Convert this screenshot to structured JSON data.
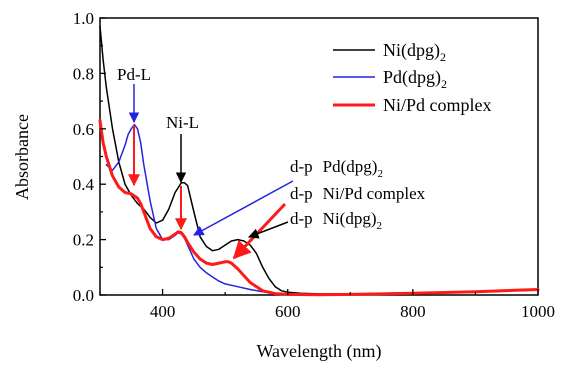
{
  "chart_data": {
    "type": "line",
    "xlabel": "Wavelength (nm)",
    "ylabel": "Absorbance",
    "xlim": [
      300,
      1000
    ],
    "ylim": [
      0.0,
      1.0
    ],
    "x_ticks": [
      400,
      600,
      800,
      1000
    ],
    "x_tick_labels": [
      "400",
      "600",
      "800",
      "1000"
    ],
    "y_ticks": [
      0.0,
      0.2,
      0.4,
      0.6,
      0.8,
      1.0
    ],
    "y_tick_labels": [
      "0.0",
      "0.2",
      "0.4",
      "0.6",
      "0.8",
      "1.0"
    ],
    "grid": false,
    "legend_position": "top-right",
    "series": [
      {
        "name": "Ni(dpg)",
        "name_sub": "2",
        "color": "#000000",
        "x": [
          300,
          305,
          310,
          320,
          330,
          340,
          350,
          360,
          370,
          380,
          390,
          400,
          410,
          420,
          430,
          435,
          440,
          450,
          460,
          470,
          480,
          490,
          500,
          510,
          520,
          530,
          540,
          550,
          560,
          570,
          580,
          590,
          600,
          620,
          650,
          700,
          800,
          900,
          1000
        ],
        "y": [
          0.97,
          0.85,
          0.75,
          0.6,
          0.48,
          0.4,
          0.36,
          0.33,
          0.31,
          0.28,
          0.26,
          0.27,
          0.31,
          0.37,
          0.405,
          0.405,
          0.395,
          0.3,
          0.21,
          0.175,
          0.16,
          0.165,
          0.18,
          0.195,
          0.2,
          0.195,
          0.18,
          0.15,
          0.1,
          0.06,
          0.03,
          0.015,
          0.01,
          0.006,
          0.004,
          0.004,
          0.006,
          0.01,
          0.018
        ]
      },
      {
        "name": "Pd(dpg)",
        "name_sub": "2",
        "color": "#2424e0",
        "x": [
          310,
          320,
          330,
          340,
          345,
          350,
          355,
          360,
          365,
          370,
          380,
          390,
          400,
          410,
          420,
          425,
          430,
          435,
          440,
          450,
          460,
          470,
          480,
          490,
          500,
          520,
          540,
          560,
          580,
          600,
          650,
          700,
          800,
          900,
          1000
        ],
        "y": [
          0.47,
          0.45,
          0.48,
          0.54,
          0.58,
          0.6,
          0.615,
          0.6,
          0.55,
          0.47,
          0.34,
          0.24,
          0.2,
          0.2,
          0.215,
          0.225,
          0.22,
          0.205,
          0.18,
          0.13,
          0.1,
          0.08,
          0.065,
          0.05,
          0.04,
          0.03,
          0.02,
          0.012,
          0.006,
          0.003,
          0.002,
          0.004,
          0.008,
          0.012,
          0.018
        ]
      },
      {
        "name": "Ni/Pd complex",
        "name_sub": "",
        "color": "#ff1a1a",
        "x": [
          300,
          305,
          310,
          320,
          330,
          340,
          350,
          360,
          365,
          370,
          380,
          390,
          400,
          410,
          420,
          425,
          430,
          435,
          440,
          450,
          460,
          470,
          480,
          490,
          500,
          505,
          510,
          520,
          530,
          540,
          560,
          580,
          600,
          650,
          700,
          800,
          900,
          1000
        ],
        "y": [
          0.63,
          0.55,
          0.5,
          0.43,
          0.39,
          0.37,
          0.365,
          0.35,
          0.33,
          0.3,
          0.24,
          0.21,
          0.2,
          0.205,
          0.22,
          0.228,
          0.225,
          0.21,
          0.19,
          0.155,
          0.13,
          0.115,
          0.11,
          0.115,
          0.12,
          0.12,
          0.115,
          0.095,
          0.07,
          0.045,
          0.015,
          0.005,
          0.002,
          0.001,
          0.002,
          0.006,
          0.012,
          0.02
        ]
      }
    ],
    "annotations": [
      {
        "text": "Pd-L",
        "color": "#2424e0"
      },
      {
        "text": "Ni-L",
        "color": "#000000"
      },
      {
        "label": "d-p",
        "target": "Pd(dpg)",
        "sub": "2",
        "color": "#2424e0"
      },
      {
        "label": "d-p",
        "target": "Ni/Pd complex",
        "sub": "",
        "color": "#ff1a1a"
      },
      {
        "label": "d-p",
        "target": "Ni(dpg)",
        "sub": "2",
        "color": "#000000"
      }
    ]
  }
}
